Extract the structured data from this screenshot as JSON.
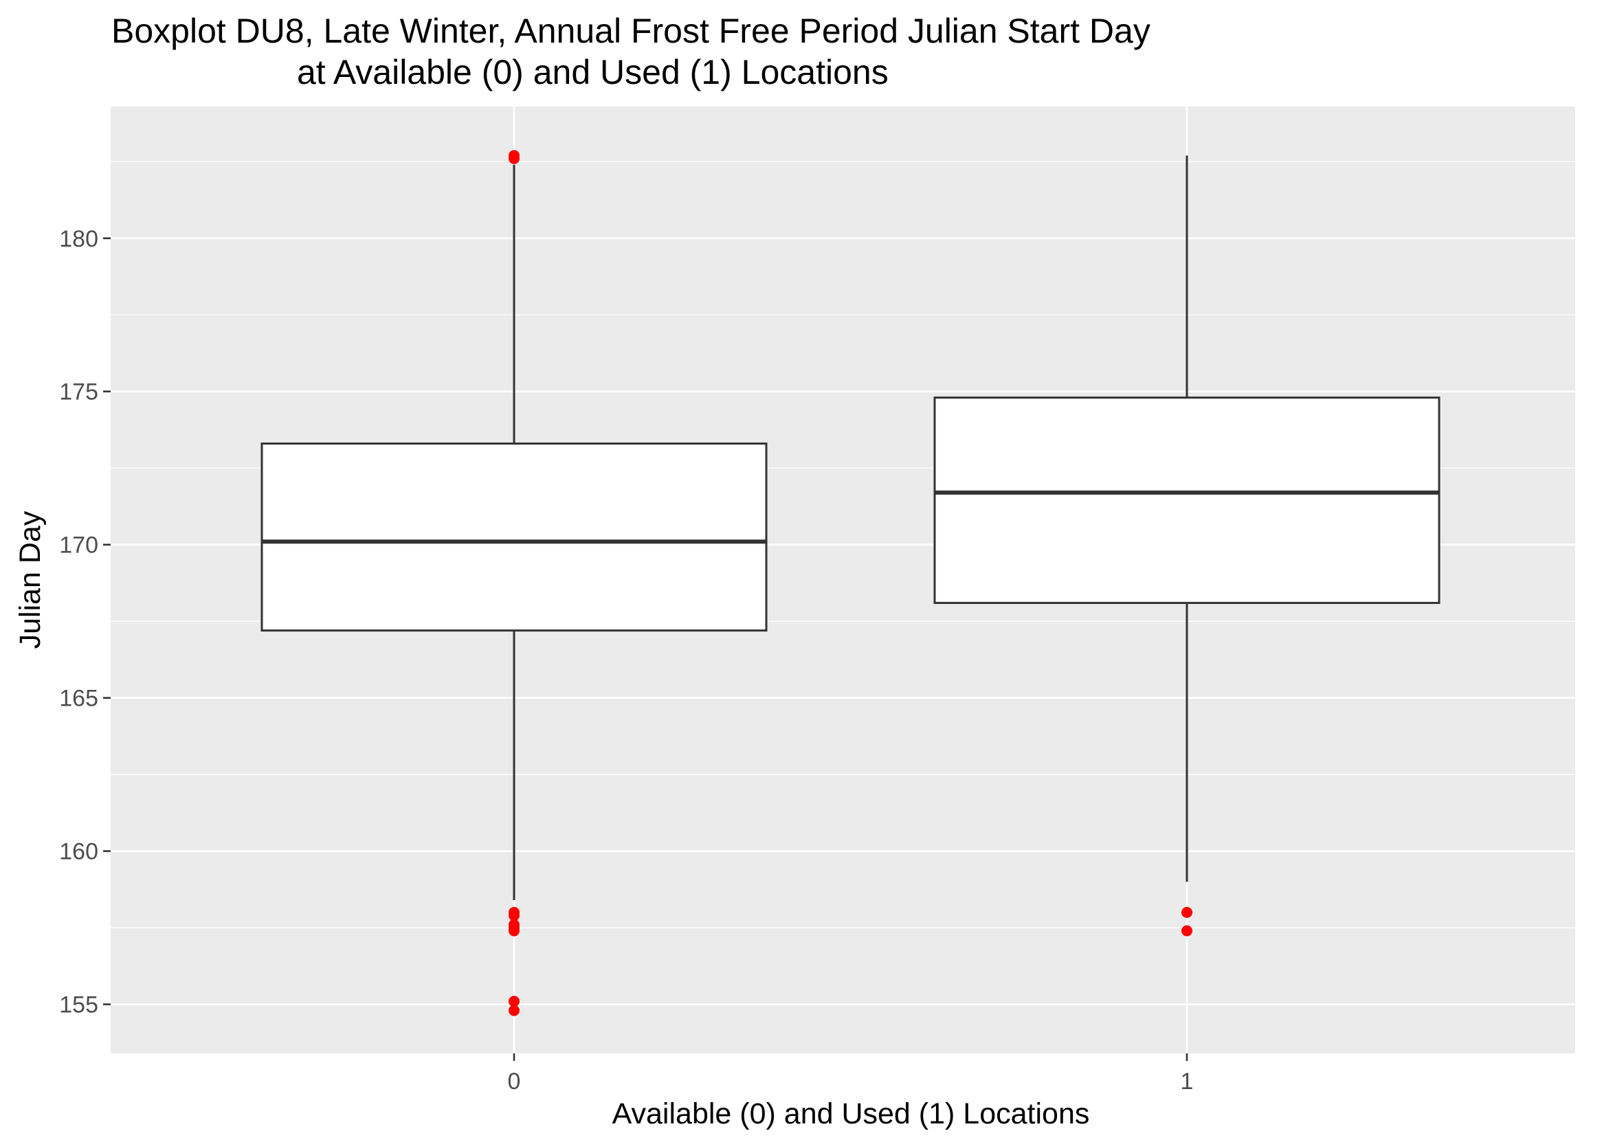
{
  "chart_data": {
    "type": "boxplot",
    "title": {
      "line1": "Boxplot DU8, Late Winter, Annual Frost Free Period Julian Start Day",
      "line2": "at Available (0) and Used (1) Locations"
    },
    "xlabel": "Available (0) and Used (1) Locations",
    "ylabel": "Julian Day",
    "ylim": [
      153.4,
      184.3
    ],
    "yticks": [
      155,
      160,
      165,
      170,
      175,
      180
    ],
    "grid": true,
    "colors": {
      "panel": "#ebebeb",
      "grid": "#ffffff",
      "box_fill": "#ffffff",
      "box_line": "#333333",
      "outlier": "#ff0000"
    },
    "categories": [
      "0",
      "1"
    ],
    "boxes": [
      {
        "category": "0",
        "whisker_low": 158.4,
        "q1": 167.2,
        "median": 170.1,
        "q3": 173.3,
        "whisker_high": 182.4,
        "outliers": [
          182.7,
          182.6,
          158.0,
          157.9,
          157.6,
          157.5,
          157.4,
          155.1,
          154.8
        ]
      },
      {
        "category": "1",
        "whisker_low": 159.0,
        "q1": 168.1,
        "median": 171.7,
        "q3": 174.8,
        "whisker_high": 182.7,
        "outliers": [
          158.0,
          157.4
        ]
      }
    ]
  }
}
